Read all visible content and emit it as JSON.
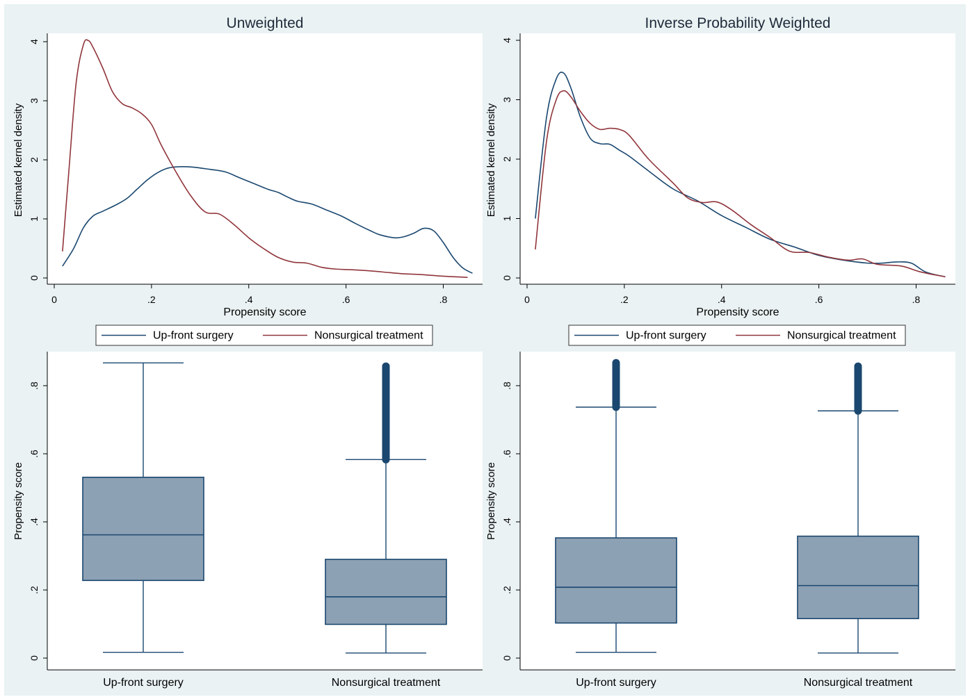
{
  "colors": {
    "background": "#eaf2f3",
    "plot_region": "#ffffff",
    "series_surgery": "#1a476f",
    "series_nonsurgical": "#90353b",
    "box_fill": "#8da1b4",
    "box_stroke": "#1a476f",
    "axis": "#000000",
    "text": "#000000"
  },
  "chart_data": [
    {
      "type": "line",
      "title": "Unweighted",
      "xlabel": "Propensity score",
      "ylabel": "Estimated kernel density",
      "xlim": [
        0,
        0.87
      ],
      "ylim": [
        0,
        4
      ],
      "x_ticks": [
        "0",
        ".2",
        ".4",
        ".6",
        ".8"
      ],
      "y_ticks": [
        "0",
        "1",
        "2",
        "3",
        "4"
      ],
      "grid": false,
      "legend_position": "bottom",
      "series": [
        {
          "name": "Up-front surgery",
          "x": [
            0.017,
            0.04,
            0.06,
            0.08,
            0.1,
            0.13,
            0.15,
            0.17,
            0.19,
            0.21,
            0.23,
            0.25,
            0.28,
            0.31,
            0.35,
            0.38,
            0.41,
            0.44,
            0.46,
            0.48,
            0.5,
            0.53,
            0.56,
            0.59,
            0.62,
            0.65,
            0.67,
            0.7,
            0.72,
            0.74,
            0.76,
            0.78,
            0.8,
            0.82,
            0.84,
            0.86
          ],
          "y": [
            0.2,
            0.5,
            0.85,
            1.05,
            1.13,
            1.25,
            1.35,
            1.5,
            1.65,
            1.77,
            1.85,
            1.88,
            1.88,
            1.85,
            1.8,
            1.7,
            1.6,
            1.5,
            1.45,
            1.37,
            1.3,
            1.25,
            1.15,
            1.05,
            0.92,
            0.8,
            0.73,
            0.68,
            0.7,
            0.76,
            0.84,
            0.8,
            0.6,
            0.35,
            0.17,
            0.08
          ]
        },
        {
          "name": "Nonsurgical treatment",
          "x": [
            0.017,
            0.03,
            0.045,
            0.06,
            0.07,
            0.08,
            0.1,
            0.12,
            0.14,
            0.16,
            0.18,
            0.2,
            0.22,
            0.25,
            0.28,
            0.31,
            0.34,
            0.37,
            0.4,
            0.43,
            0.46,
            0.49,
            0.52,
            0.55,
            0.58,
            0.61,
            0.65,
            0.69,
            0.72,
            0.75,
            0.8,
            0.85
          ],
          "y": [
            0.45,
            1.8,
            3.3,
            3.95,
            4.02,
            3.9,
            3.55,
            3.15,
            2.95,
            2.88,
            2.78,
            2.6,
            2.25,
            1.8,
            1.4,
            1.12,
            1.08,
            0.9,
            0.68,
            0.5,
            0.35,
            0.27,
            0.25,
            0.18,
            0.15,
            0.14,
            0.12,
            0.09,
            0.07,
            0.06,
            0.03,
            0.01
          ]
        }
      ]
    },
    {
      "type": "line",
      "title": "Inverse Probability Weighted",
      "xlabel": "Propensity score",
      "ylabel": "Estimated kernel density",
      "xlim": [
        0,
        0.87
      ],
      "ylim": [
        0,
        4
      ],
      "x_ticks": [
        "0",
        ".2",
        ".4",
        ".6",
        ".8"
      ],
      "y_ticks": [
        "0",
        "1",
        "2",
        "3",
        "4"
      ],
      "grid": false,
      "legend_position": "bottom",
      "series": [
        {
          "name": "Up-front surgery",
          "x": [
            0.017,
            0.04,
            0.06,
            0.075,
            0.09,
            0.11,
            0.13,
            0.15,
            0.17,
            0.19,
            0.21,
            0.25,
            0.3,
            0.35,
            0.4,
            0.45,
            0.5,
            0.55,
            0.6,
            0.65,
            0.7,
            0.73,
            0.76,
            0.79,
            0.82,
            0.86
          ],
          "y": [
            1.0,
            2.7,
            3.35,
            3.45,
            3.2,
            2.7,
            2.35,
            2.26,
            2.25,
            2.15,
            2.05,
            1.8,
            1.5,
            1.3,
            1.05,
            0.85,
            0.65,
            0.52,
            0.38,
            0.3,
            0.25,
            0.25,
            0.27,
            0.25,
            0.1,
            0.02
          ]
        },
        {
          "name": "Nonsurgical treatment",
          "x": [
            0.017,
            0.04,
            0.06,
            0.075,
            0.09,
            0.11,
            0.13,
            0.15,
            0.17,
            0.19,
            0.21,
            0.25,
            0.3,
            0.33,
            0.36,
            0.39,
            0.42,
            0.46,
            0.5,
            0.54,
            0.58,
            0.62,
            0.66,
            0.69,
            0.72,
            0.77,
            0.81,
            0.86
          ],
          "y": [
            0.48,
            2.3,
            3.0,
            3.15,
            3.05,
            2.8,
            2.6,
            2.5,
            2.52,
            2.5,
            2.4,
            2.0,
            1.6,
            1.35,
            1.27,
            1.28,
            1.15,
            0.9,
            0.68,
            0.45,
            0.43,
            0.35,
            0.3,
            0.32,
            0.23,
            0.2,
            0.1,
            0.02
          ]
        }
      ]
    },
    {
      "type": "box",
      "ylabel": "Propensity score",
      "ylim": [
        0,
        0.88
      ],
      "y_ticks": [
        "0",
        ".2",
        ".4",
        ".6",
        ".8"
      ],
      "categories": [
        "Up-front surgery",
        "Nonsurgical treatment"
      ],
      "boxes": [
        {
          "category": "Up-front surgery",
          "whisker_low": 0.017,
          "q1": 0.228,
          "median": 0.362,
          "q3": 0.531,
          "whisker_high": 0.867,
          "outliers_from": null,
          "outliers_to": null
        },
        {
          "category": "Nonsurgical treatment",
          "whisker_low": 0.015,
          "q1": 0.099,
          "median": 0.18,
          "q3": 0.29,
          "whisker_high": 0.583,
          "outliers_from": 0.583,
          "outliers_to": 0.857
        }
      ]
    },
    {
      "type": "box",
      "ylabel": "Propensity score",
      "ylim": [
        0,
        0.88
      ],
      "y_ticks": [
        "0",
        ".2",
        ".4",
        ".6",
        ".8"
      ],
      "categories": [
        "Up-front surgery",
        "Nonsurgical treatment"
      ],
      "boxes": [
        {
          "category": "Up-front surgery",
          "whisker_low": 0.017,
          "q1": 0.103,
          "median": 0.208,
          "q3": 0.353,
          "whisker_high": 0.737,
          "outliers_from": 0.737,
          "outliers_to": 0.867
        },
        {
          "category": "Nonsurgical treatment",
          "whisker_low": 0.015,
          "q1": 0.116,
          "median": 0.213,
          "q3": 0.358,
          "whisker_high": 0.726,
          "outliers_from": 0.726,
          "outliers_to": 0.857
        }
      ]
    }
  ]
}
